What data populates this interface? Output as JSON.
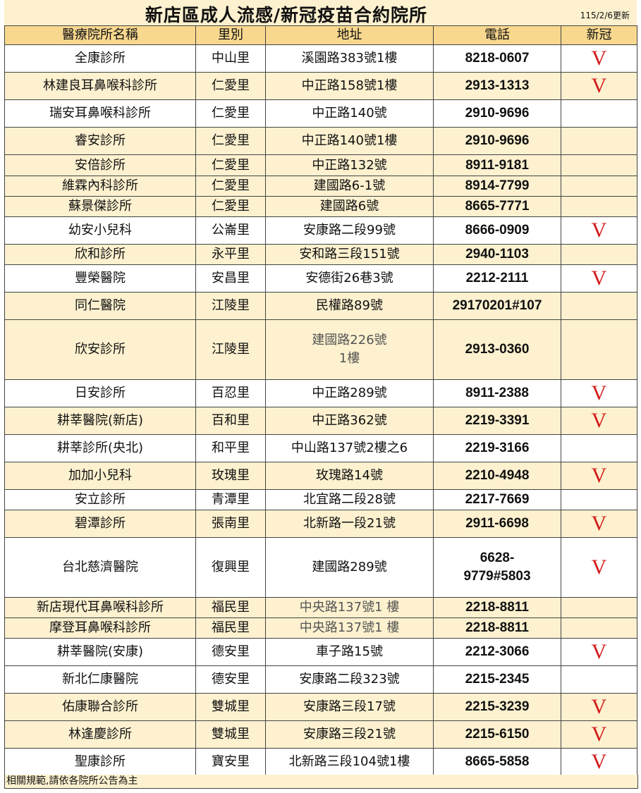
{
  "title": "新店區成人流感/新冠疫苗合約院所",
  "updated": "115/2/6更新",
  "columns": [
    "醫療院所名稱",
    "里別",
    "地址",
    "電話",
    "新冠"
  ],
  "check_mark": "V",
  "colors": {
    "header": "#f8d88e",
    "cream_row": "#fdf1cf",
    "check": "#d41a1a"
  },
  "rows": [
    {
      "name": "全康診所",
      "village": "中山里",
      "address": "溪園路383號1樓",
      "phone": "8218-0607",
      "covid": true,
      "cream": false
    },
    {
      "name": "林建良耳鼻喉科診所",
      "village": "仁愛里",
      "address": "中正路158號1樓",
      "phone": "2913-1313",
      "covid": true,
      "cream": true
    },
    {
      "name": "瑞安耳鼻喉科診所",
      "village": "仁愛里",
      "address": "中正路140號",
      "phone": "2910-9696",
      "covid": false,
      "cream": false
    },
    {
      "name": "睿安診所",
      "village": "仁愛里",
      "address": "中正路140號1樓",
      "phone": "2910-9696",
      "covid": false,
      "cream": true
    },
    {
      "name": "安倍診所",
      "village": "仁愛里",
      "address": "中正路132號",
      "phone": "8911-9181",
      "covid": false,
      "cream": true
    },
    {
      "name": "維霖內科診所",
      "village": "仁愛里",
      "address": "建國路6-1號",
      "phone": "8914-7799",
      "covid": false,
      "cream": true
    },
    {
      "name": "蘇景傑診所",
      "village": "仁愛里",
      "address": "建國路6號",
      "phone": "8665-7771",
      "covid": false,
      "cream": true
    },
    {
      "name": "幼安小兒科",
      "village": "公崙里",
      "address": "安康路二段99號",
      "phone": "8666-0909",
      "covid": true,
      "cream": false
    },
    {
      "name": "欣和診所",
      "village": "永平里",
      "address": "安和路三段151號",
      "phone": "2940-1103",
      "covid": false,
      "cream": true
    },
    {
      "name": "豐榮醫院",
      "village": "安昌里",
      "address": "安德街26巷3號",
      "phone": "2212-2111",
      "covid": true,
      "cream": false
    },
    {
      "name": "同仁醫院",
      "village": "江陵里",
      "address": "民權路89號",
      "phone": "29170201#107",
      "covid": false,
      "cream": true
    },
    {
      "name": "欣安診所",
      "village": "江陵里",
      "address": "建國路226號\n1樓",
      "phone": "2913-0360",
      "covid": false,
      "cream": true
    },
    {
      "name": "日安診所",
      "village": "百忍里",
      "address": "中正路289號",
      "phone": "8911-2388",
      "covid": true,
      "cream": false
    },
    {
      "name": "耕莘醫院(新店)",
      "village": "百和里",
      "address": "中正路362號",
      "phone": "2219-3391",
      "covid": true,
      "cream": true
    },
    {
      "name": "耕莘診所(央北)",
      "village": "和平里",
      "address": "中山路137號2樓之6",
      "phone": "2219-3166",
      "covid": false,
      "cream": false
    },
    {
      "name": "加加小兒科",
      "village": "玫瑰里",
      "address": "玫瑰路14號",
      "phone": "2210-4948",
      "covid": true,
      "cream": true
    },
    {
      "name": "安立診所",
      "village": "青潭里",
      "address": "北宜路二段28號",
      "phone": "2217-7669",
      "covid": false,
      "cream": false
    },
    {
      "name": "碧潭診所",
      "village": "張南里",
      "address": "北新路一段21號",
      "phone": "2911-6698",
      "covid": true,
      "cream": true
    },
    {
      "name": "台北慈濟醫院",
      "village": "復興里",
      "address": "建國路289號",
      "phone": "6628-\n9779#5803",
      "covid": true,
      "cream": false
    },
    {
      "name": "新店現代耳鼻喉科診所",
      "village": "福民里",
      "address": "中央路137號1 樓",
      "phone": "2218-8811",
      "covid": false,
      "cream": true
    },
    {
      "name": "摩登耳鼻喉科診所",
      "village": "福民里",
      "address": "中央路137號1 樓",
      "phone": "2218-8811",
      "covid": false,
      "cream": true
    },
    {
      "name": "耕莘醫院(安康)",
      "village": "德安里",
      "address": "車子路15號",
      "phone": "2212-3066",
      "covid": true,
      "cream": false
    },
    {
      "name": "新北仁康醫院",
      "village": "德安里",
      "address": "安康路二段323號",
      "phone": "2215-2345",
      "covid": false,
      "cream": false
    },
    {
      "name": "佑康聯合診所",
      "village": "雙城里",
      "address": "安康路三段17號",
      "phone": "2215-3239",
      "covid": true,
      "cream": true
    },
    {
      "name": "林逢慶診所",
      "village": "雙城里",
      "address": "安康路三段21號",
      "phone": "2215-6150",
      "covid": true,
      "cream": true
    },
    {
      "name": "聖康診所",
      "village": "寶安里",
      "address": "北新路三段104號1樓",
      "phone": "8665-5858",
      "covid": true,
      "cream": false
    }
  ],
  "footer": "相關規範,請依各院所公告為主"
}
